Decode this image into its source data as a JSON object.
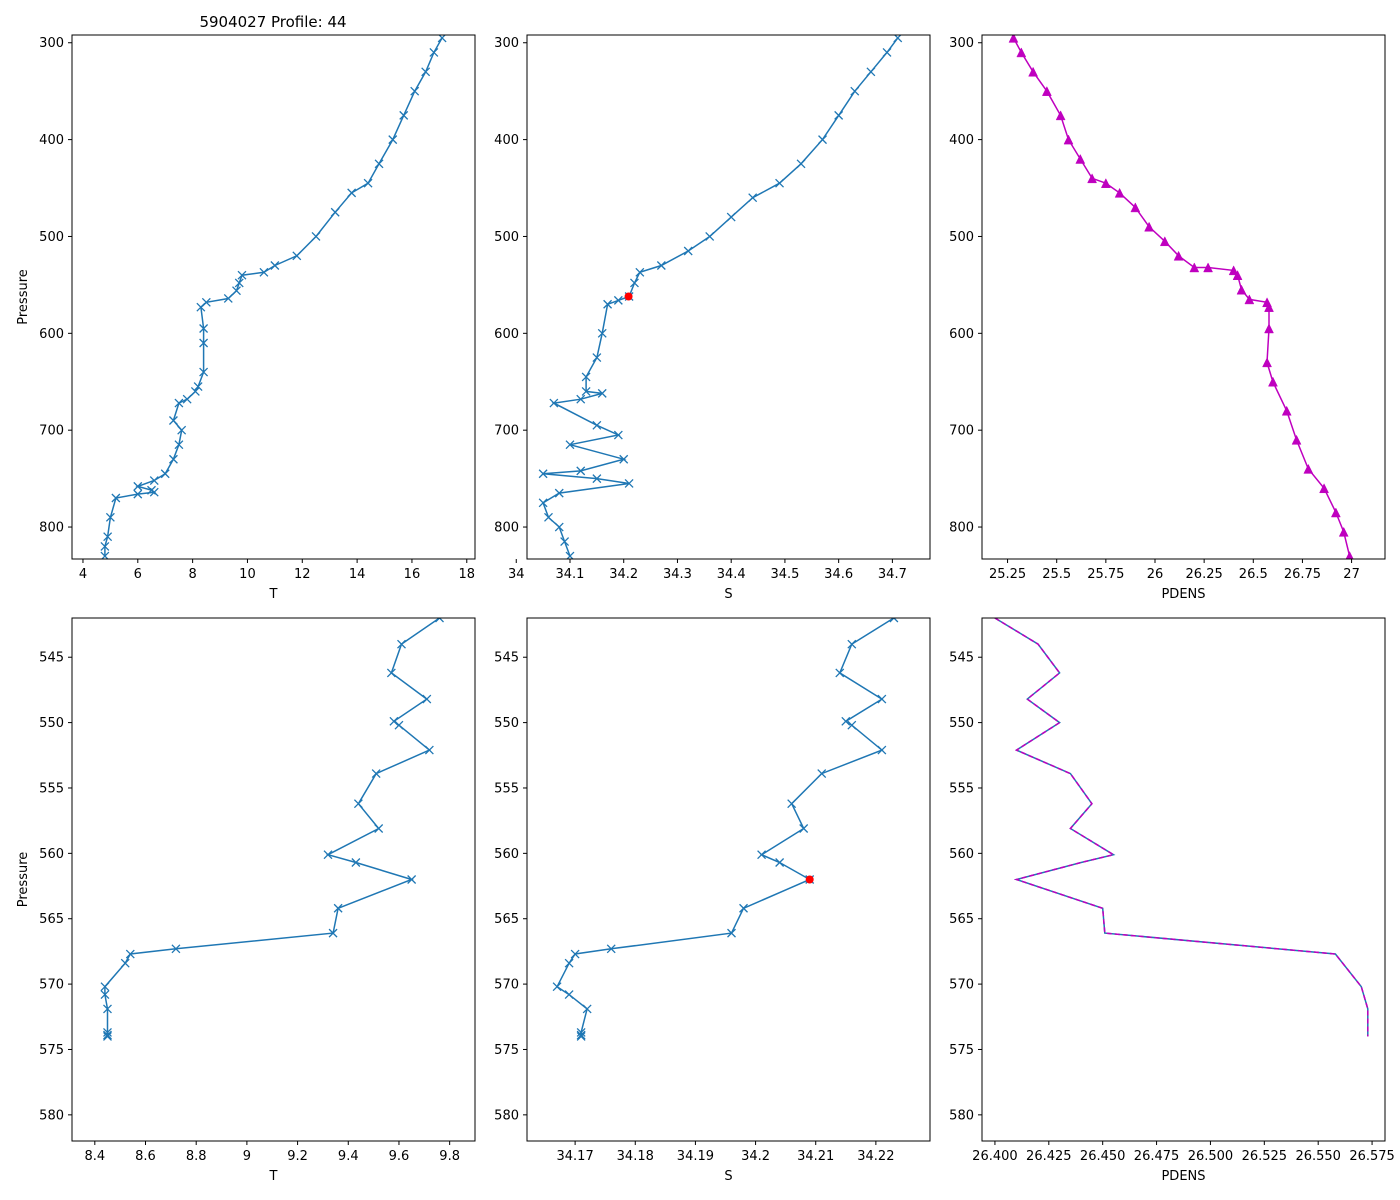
{
  "figure": {
    "title": "5904027 Profile: 44"
  },
  "colors": {
    "line": "#1f77b4",
    "marker": "#1f77b4",
    "pdens": "#bf00bf",
    "highlight": "#ff0000"
  },
  "chart_data": [
    {
      "id": "top-t",
      "type": "line",
      "xlabel": "T",
      "ylabel": "Pressure",
      "title": "5904027 Profile: 44",
      "xlim": [
        3.6,
        18.3
      ],
      "ylim": [
        833,
        292
      ],
      "xticks": [
        4,
        6,
        8,
        10,
        12,
        14,
        16,
        18
      ],
      "yticks": [
        300,
        400,
        500,
        600,
        700,
        800
      ],
      "marker": "x",
      "x": [
        17.1,
        16.8,
        16.5,
        16.1,
        15.7,
        15.3,
        14.8,
        14.4,
        13.8,
        13.2,
        12.5,
        11.8,
        11.0,
        10.6,
        9.8,
        9.7,
        9.6,
        9.3,
        8.5,
        8.3,
        8.4,
        8.4,
        8.4,
        8.2,
        8.1,
        7.8,
        7.5,
        7.3,
        7.6,
        7.5,
        7.3,
        7.0,
        6.6,
        6.0,
        6.5,
        6.6,
        6.0,
        5.2,
        5.0,
        4.9,
        4.8,
        4.8
      ],
      "y": [
        295,
        310,
        330,
        350,
        375,
        400,
        425,
        445,
        455,
        475,
        500,
        520,
        530,
        537,
        540,
        548,
        556,
        564,
        568,
        573,
        595,
        610,
        640,
        655,
        660,
        668,
        672,
        690,
        700,
        715,
        730,
        745,
        752,
        758,
        762,
        764,
        766,
        770,
        790,
        810,
        820,
        830
      ]
    },
    {
      "id": "top-s",
      "type": "line",
      "xlabel": "S",
      "ylabel": "",
      "xlim": [
        34.02,
        34.77
      ],
      "ylim": [
        833,
        292
      ],
      "xticks": [
        34.0,
        34.1,
        34.2,
        34.3,
        34.4,
        34.5,
        34.6,
        34.7
      ],
      "yticks": [
        300,
        400,
        500,
        600,
        700,
        800
      ],
      "marker": "x",
      "highlight": {
        "x": 34.209,
        "y": 562
      },
      "x": [
        34.71,
        34.69,
        34.66,
        34.63,
        34.6,
        34.57,
        34.53,
        34.49,
        34.44,
        34.4,
        34.36,
        34.32,
        34.27,
        34.23,
        34.22,
        34.21,
        34.19,
        34.17,
        34.16,
        34.15,
        34.13,
        34.13,
        34.16,
        34.12,
        34.07,
        34.15,
        34.19,
        34.1,
        34.2,
        34.12,
        34.05,
        34.15,
        34.21,
        34.08,
        34.05,
        34.06,
        34.08,
        34.09,
        34.1
      ],
      "y": [
        295,
        310,
        330,
        350,
        375,
        400,
        425,
        445,
        460,
        480,
        500,
        515,
        530,
        537,
        548,
        562,
        566,
        570,
        600,
        625,
        645,
        660,
        662,
        668,
        672,
        695,
        705,
        715,
        730,
        742,
        745,
        750,
        755,
        765,
        775,
        790,
        800,
        815,
        830
      ]
    },
    {
      "id": "top-pdens",
      "type": "line",
      "xlabel": "PDENS",
      "ylabel": "",
      "xlim": [
        25.12,
        27.17
      ],
      "ylim": [
        833,
        292
      ],
      "xticks": [
        25.25,
        25.5,
        25.75,
        26.0,
        26.25,
        26.5,
        26.75,
        27.0
      ],
      "yticks": [
        300,
        400,
        500,
        600,
        700,
        800
      ],
      "marker": "^",
      "x": [
        25.28,
        25.32,
        25.38,
        25.45,
        25.52,
        25.56,
        25.62,
        25.68,
        25.75,
        25.82,
        25.9,
        25.97,
        26.05,
        26.12,
        26.2,
        26.27,
        26.4,
        26.42,
        26.44,
        26.48,
        26.57,
        26.58,
        26.58,
        26.57,
        26.6,
        26.67,
        26.72,
        26.78,
        26.86,
        26.92,
        26.96,
        26.99
      ],
      "y": [
        295,
        310,
        330,
        350,
        375,
        400,
        420,
        440,
        445,
        455,
        470,
        490,
        505,
        520,
        532,
        532,
        535,
        540,
        555,
        565,
        568,
        573,
        595,
        630,
        650,
        680,
        710,
        740,
        760,
        785,
        805,
        830
      ]
    },
    {
      "id": "bottom-t",
      "type": "line",
      "xlabel": "T",
      "ylabel": "Pressure",
      "xlim": [
        8.31,
        9.9
      ],
      "ylim": [
        582,
        542
      ],
      "xticks": [
        8.4,
        8.6,
        8.8,
        9.0,
        9.2,
        9.4,
        9.6,
        9.8
      ],
      "yticks": [
        545,
        550,
        555,
        560,
        565,
        570,
        575,
        580
      ],
      "marker": "x",
      "x": [
        9.76,
        9.61,
        9.57,
        9.71,
        9.58,
        9.6,
        9.72,
        9.51,
        9.44,
        9.52,
        9.32,
        9.43,
        9.65,
        9.36,
        9.34,
        8.72,
        8.54,
        8.52,
        8.44,
        8.44,
        8.45,
        8.45,
        8.45,
        8.45
      ],
      "y": [
        542,
        544,
        546.2,
        548.2,
        549.9,
        550.2,
        552.1,
        553.9,
        556.2,
        558.1,
        560.1,
        560.7,
        562.0,
        564.2,
        566.1,
        567.3,
        567.7,
        568.4,
        570.2,
        570.8,
        571.9,
        573.7,
        573.9,
        574.0
      ]
    },
    {
      "id": "bottom-s",
      "type": "line",
      "xlabel": "S",
      "ylabel": "",
      "xlim": [
        34.162,
        34.229
      ],
      "ylim": [
        582,
        542
      ],
      "xticks": [
        34.17,
        34.18,
        34.19,
        34.2,
        34.21,
        34.22
      ],
      "yticks": [
        545,
        550,
        555,
        560,
        565,
        570,
        575,
        580
      ],
      "marker": "x",
      "highlight": {
        "x": 34.209,
        "y": 562
      },
      "x": [
        34.223,
        34.216,
        34.214,
        34.221,
        34.215,
        34.216,
        34.221,
        34.211,
        34.206,
        34.208,
        34.201,
        34.204,
        34.209,
        34.198,
        34.196,
        34.176,
        34.17,
        34.169,
        34.167,
        34.169,
        34.172,
        34.171,
        34.171,
        34.171
      ],
      "y": [
        542,
        544,
        546.2,
        548.2,
        549.9,
        550.2,
        552.1,
        553.9,
        556.2,
        558.1,
        560.1,
        560.7,
        562.0,
        564.2,
        566.1,
        567.3,
        567.7,
        568.4,
        570.2,
        570.8,
        571.9,
        573.7,
        573.9,
        574.0
      ]
    },
    {
      "id": "bottom-pdens",
      "type": "line",
      "xlabel": "PDENS",
      "ylabel": "",
      "xlim": [
        26.394,
        26.581
      ],
      "ylim": [
        582,
        542
      ],
      "xticks": [
        26.4,
        26.425,
        26.45,
        26.475,
        26.5,
        26.525,
        26.55,
        26.575
      ],
      "xticklabels": [
        "26.400",
        "26.425",
        "26.450",
        "26.475",
        "26.500",
        "26.525",
        "26.550",
        "26.575"
      ],
      "yticks": [
        545,
        550,
        555,
        560,
        565,
        570,
        575,
        580
      ],
      "marker": "none",
      "x": [
        26.4,
        26.42,
        26.43,
        26.415,
        26.43,
        26.41,
        26.435,
        26.445,
        26.435,
        26.455,
        26.44,
        26.41,
        26.45,
        26.451,
        26.558,
        26.57,
        26.573,
        26.573
      ],
      "y": [
        542,
        544,
        546.2,
        548.2,
        550,
        552.1,
        553.9,
        556.2,
        558.1,
        560.1,
        560.7,
        562,
        564.2,
        566.1,
        567.7,
        570.2,
        571.9,
        574
      ]
    }
  ]
}
